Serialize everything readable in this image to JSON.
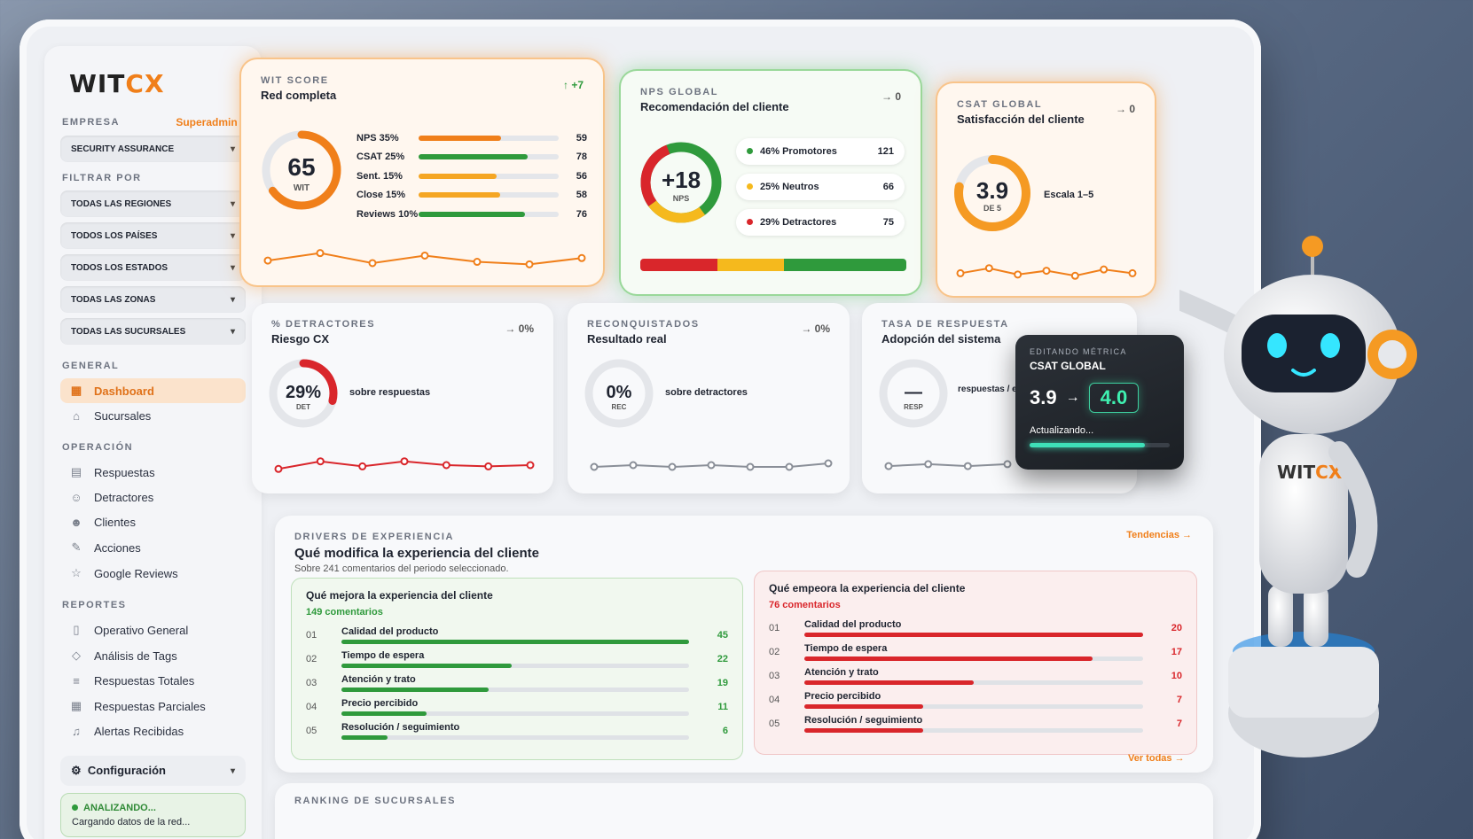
{
  "app": {
    "logo_main": "WIT",
    "logo_accent": "CX"
  },
  "sidebar": {
    "company_label": "EMPRESA",
    "company_role": "Superadmin ‹",
    "company_value": "SECURITY ASSURANCE",
    "filter_label": "FILTRAR POR",
    "filters": [
      "TODAS LAS REGIONES",
      "TODOS LOS PAÍSES",
      "TODOS LOS ESTADOS",
      "TODAS LAS ZONAS",
      "TODAS LAS SUCURSALES"
    ],
    "general_label": "GENERAL",
    "general_items": [
      {
        "label": "Dashboard",
        "icon": "grid-icon"
      },
      {
        "label": "Sucursales",
        "icon": "home-icon"
      }
    ],
    "operation_label": "OPERACIÓN",
    "operation_items": [
      {
        "label": "Respuestas",
        "icon": "clipboard-icon"
      },
      {
        "label": "Detractores",
        "icon": "users-icon"
      },
      {
        "label": "Clientes",
        "icon": "user-group-icon"
      },
      {
        "label": "Acciones",
        "icon": "edit-icon"
      },
      {
        "label": "Google Reviews",
        "icon": "star-icon"
      }
    ],
    "reports_label": "REPORTES",
    "reports_items": [
      {
        "label": "Operativo General",
        "icon": "file-icon"
      },
      {
        "label": "Análisis de Tags",
        "icon": "tag-icon"
      },
      {
        "label": "Respuestas Totales",
        "icon": "list-icon"
      },
      {
        "label": "Respuestas Parciales",
        "icon": "table-icon"
      },
      {
        "label": "Alertas Recibidas",
        "icon": "bell-icon"
      }
    ],
    "config_label": "Configuración",
    "status_title": "ANALIZANDO...",
    "status_sub": "Cargando datos de la red..."
  },
  "wit_score": {
    "kicker": "WIT SCORE",
    "title": "Red completa",
    "trend": "↑ +7",
    "value": "65",
    "unit": "WIT",
    "gauge": 0.65,
    "bars": [
      {
        "label": "NPS 35%",
        "value": 59,
        "color": "#f07f1a"
      },
      {
        "label": "CSAT 25%",
        "value": 78,
        "color": "#2f9a3c"
      },
      {
        "label": "Sent. 15%",
        "value": 56,
        "color": "#f5a623"
      },
      {
        "label": "Close 15%",
        "value": 58,
        "color": "#f5a623"
      },
      {
        "label": "Reviews 10%",
        "value": 76,
        "color": "#2f9a3c"
      }
    ],
    "spark": [
      60,
      66,
      58,
      64,
      59,
      57,
      62
    ]
  },
  "nps": {
    "kicker": "NPS GLOBAL",
    "title": "Recomendación del cliente",
    "trend": "→ 0",
    "value": "+18",
    "unit": "NPS",
    "segments": [
      {
        "label": "46% Promotores",
        "count": "121",
        "color": "#2f9a3c"
      },
      {
        "label": "25% Neutros",
        "count": "66",
        "color": "#f5b91d"
      },
      {
        "label": "29% Detractores",
        "count": "75",
        "color": "#d9262b"
      }
    ],
    "bar_split": [
      0.29,
      0.25,
      0.46
    ]
  },
  "csat": {
    "kicker": "CSAT GLOBAL",
    "title": "Satisfacción del cliente",
    "trend": "→ 0",
    "value": "3.9",
    "unit": "DE 5",
    "scale": "Escala 1–5",
    "gauge": 0.78,
    "spark": [
      60,
      64,
      59,
      62,
      58,
      63,
      60
    ]
  },
  "detractores": {
    "kicker": "% DETRACTORES",
    "title": "Riesgo CX",
    "trend": "→ 0%",
    "value": "29%",
    "unit": "DET",
    "desc": "sobre respuestas",
    "gauge": 0.29,
    "spark": [
      58,
      64,
      60,
      64,
      61,
      60,
      61
    ]
  },
  "reconquistados": {
    "kicker": "RECONQUISTADOS",
    "title": "Resultado real",
    "trend": "→ 0%",
    "value": "0%",
    "unit": "REC",
    "desc": "sobre detractores",
    "spark": [
      60,
      61,
      60,
      61,
      60,
      60,
      62
    ]
  },
  "tasa": {
    "kicker": "TASA DE RESPUESTA",
    "title": "Adopción del sistema",
    "trend": "→ 0%",
    "value": "—",
    "unit": "RESP",
    "desc": "respuestas / envíos",
    "spark": [
      60,
      61,
      60,
      61
    ]
  },
  "editor": {
    "kicker": "EDITANDO MÉTRICA",
    "title": "CSAT GLOBAL",
    "old": "3.9",
    "arrow": "→",
    "new": "4.0",
    "status": "Actualizando...",
    "progress": 0.82
  },
  "drivers": {
    "kicker": "DRIVERS DE EXPERIENCIA",
    "title": "Qué modifica la experiencia del cliente",
    "sub": "Sobre 241 comentarios del periodo seleccionado.",
    "link": "Tendencias →",
    "good": {
      "title": "Qué mejora la experiencia del cliente",
      "count": "149 comentarios",
      "items": [
        {
          "n": "01",
          "label": "Calidad del producto",
          "value": 45
        },
        {
          "n": "02",
          "label": "Tiempo de espera",
          "value": 22
        },
        {
          "n": "03",
          "label": "Atención y trato",
          "value": 19
        },
        {
          "n": "04",
          "label": "Precio percibido",
          "value": 11
        },
        {
          "n": "05",
          "label": "Resolución / seguimiento",
          "value": 6
        }
      ]
    },
    "bad": {
      "title": "Qué empeora la experiencia del cliente",
      "count": "76 comentarios",
      "items": [
        {
          "n": "01",
          "label": "Calidad del producto",
          "value": 20
        },
        {
          "n": "02",
          "label": "Tiempo de espera",
          "value": 17
        },
        {
          "n": "03",
          "label": "Atención y trato",
          "value": 10
        },
        {
          "n": "04",
          "label": "Precio percibido",
          "value": 7
        },
        {
          "n": "05",
          "label": "Resolución / seguimiento",
          "value": 7
        }
      ]
    }
  },
  "ranking": {
    "kicker": "RANKING DE SUCURSALES",
    "link": "Ver todas →"
  },
  "colors": {
    "accent": "#f07f1a",
    "green": "#2f9a3c",
    "red": "#d9262b",
    "yellow": "#f5b91d"
  }
}
